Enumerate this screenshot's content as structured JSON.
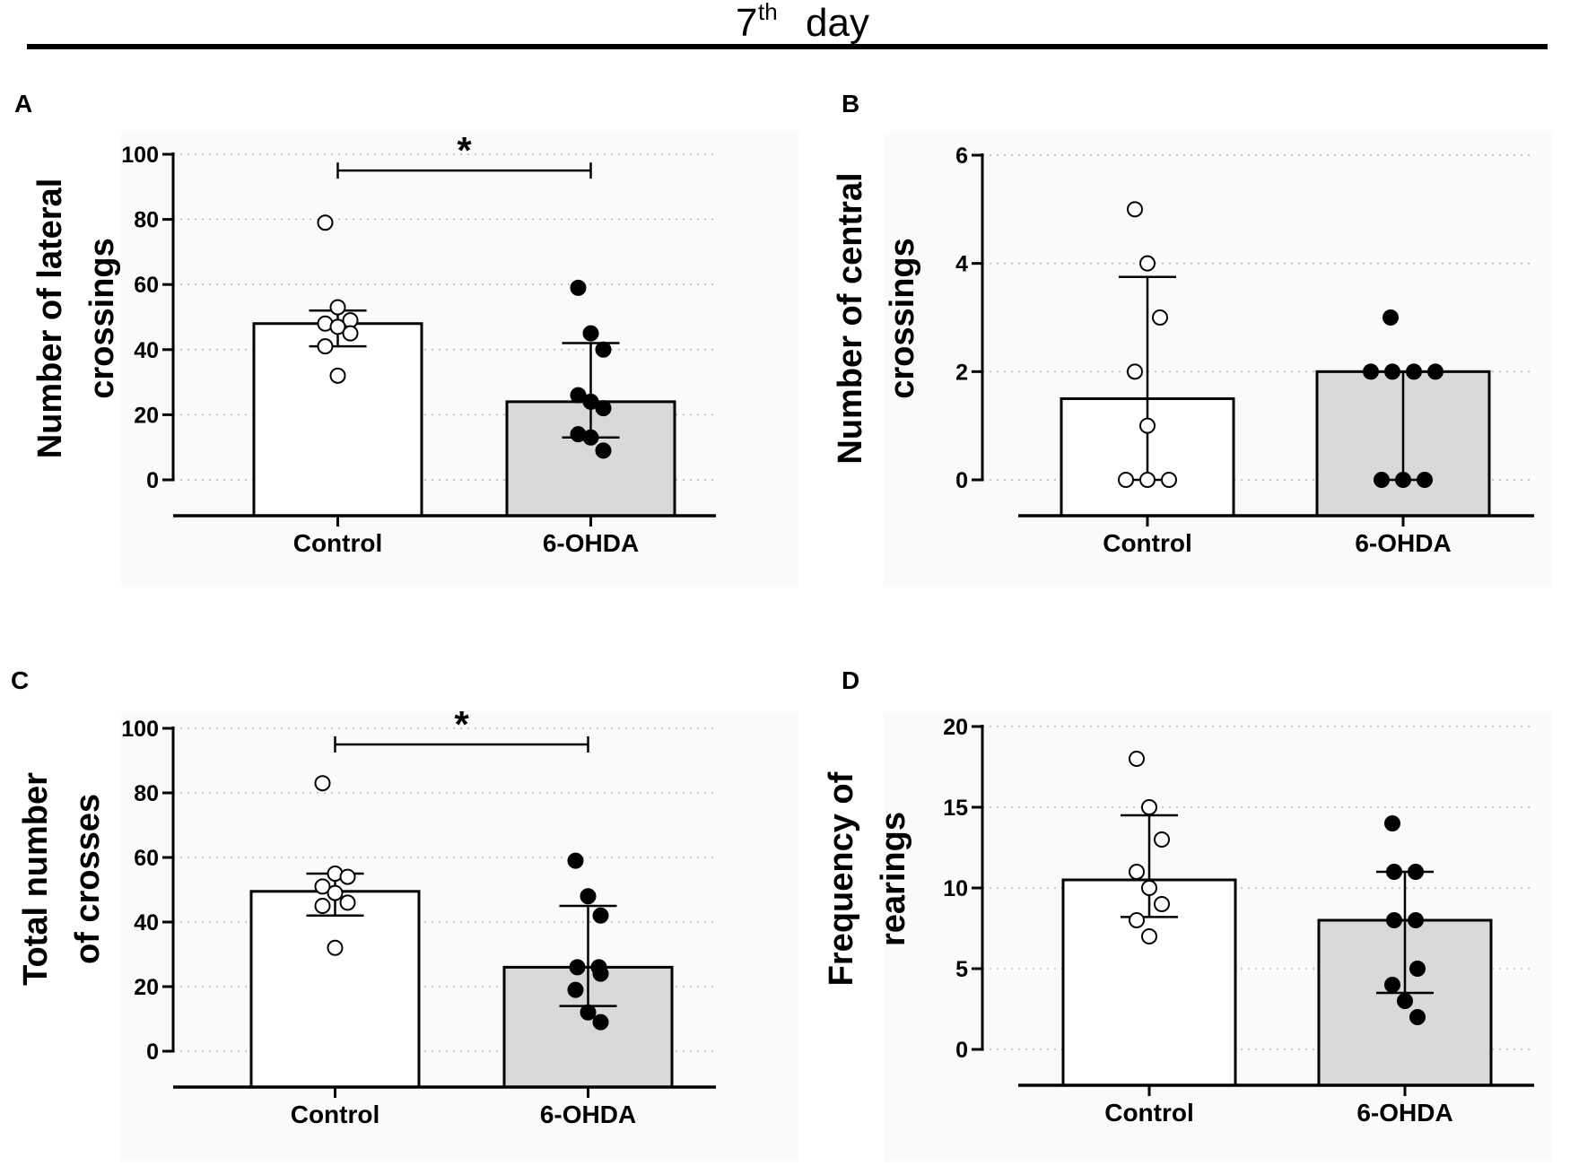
{
  "header": {
    "base": "7",
    "superscript": "th",
    "word": "day"
  },
  "colors": {
    "control_fill": "#ffffff",
    "treated_fill": "#d9d9d9",
    "axis": "#000000",
    "grid": "#b5b5b5",
    "panel_bg": "#fafafa"
  },
  "chart_data": [
    {
      "panel": "A",
      "type": "bar",
      "ylabel": [
        "Number of lateral",
        "crossings"
      ],
      "categories": [
        "Control",
        "6-OHDA"
      ],
      "ylim": [
        0,
        100
      ],
      "yticks": [
        0,
        20,
        40,
        60,
        80,
        100
      ],
      "grid": true,
      "series": [
        {
          "name": "Control",
          "mean": 48,
          "error_low": 41,
          "error_high": 52,
          "points": [
            79,
            53,
            49,
            48,
            47,
            45,
            41,
            32
          ],
          "marker": "open"
        },
        {
          "name": "6-OHDA",
          "mean": 24,
          "error_low": 13,
          "error_high": 42,
          "points": [
            59,
            45,
            40,
            26,
            24,
            22,
            14,
            13,
            9
          ],
          "marker": "filled"
        }
      ],
      "significance": {
        "between": [
          "Control",
          "6-OHDA"
        ],
        "label": "*",
        "y": 95
      }
    },
    {
      "panel": "B",
      "type": "bar",
      "ylabel": [
        "Number of central",
        "crossings"
      ],
      "categories": [
        "Control",
        "6-OHDA"
      ],
      "ylim": [
        0,
        6
      ],
      "yticks": [
        0,
        2,
        4,
        6
      ],
      "grid": true,
      "series": [
        {
          "name": "Control",
          "mean": 1.5,
          "error_low": 0,
          "error_high": 3.75,
          "points": [
            5,
            4,
            3,
            2,
            1,
            0,
            0,
            0
          ],
          "marker": "open"
        },
        {
          "name": "6-OHDA",
          "mean": 2,
          "error_low": 0,
          "error_high": 2,
          "points": [
            3,
            2,
            2,
            2,
            2,
            0,
            0,
            0
          ],
          "marker": "filled"
        }
      ],
      "significance": null
    },
    {
      "panel": "C",
      "type": "bar",
      "ylabel": [
        "Total number",
        "of crosses"
      ],
      "categories": [
        "Control",
        "6-OHDA"
      ],
      "ylim": [
        0,
        100
      ],
      "yticks": [
        0,
        20,
        40,
        60,
        80,
        100
      ],
      "grid": true,
      "series": [
        {
          "name": "Control",
          "mean": 49.5,
          "error_low": 42,
          "error_high": 55,
          "points": [
            83,
            55,
            54,
            51,
            49,
            46,
            45,
            32
          ],
          "marker": "open"
        },
        {
          "name": "6-OHDA",
          "mean": 26,
          "error_low": 14,
          "error_high": 45,
          "points": [
            59,
            48,
            42,
            26,
            26,
            24,
            19,
            12,
            9
          ],
          "marker": "filled"
        }
      ],
      "significance": {
        "between": [
          "Control",
          "6-OHDA"
        ],
        "label": "*",
        "y": 95
      }
    },
    {
      "panel": "D",
      "type": "bar",
      "ylabel": [
        "Frequency of",
        "rearings"
      ],
      "categories": [
        "Control",
        "6-OHDA"
      ],
      "ylim": [
        0,
        20
      ],
      "yticks": [
        0,
        5,
        10,
        15,
        20
      ],
      "grid": true,
      "series": [
        {
          "name": "Control",
          "mean": 10.5,
          "error_low": 8.2,
          "error_high": 14.5,
          "points": [
            18,
            15,
            13,
            11,
            10,
            9,
            8,
            7
          ],
          "marker": "open"
        },
        {
          "name": "6-OHDA",
          "mean": 8,
          "error_low": 3.5,
          "error_high": 11,
          "points": [
            14,
            11,
            11,
            8,
            8,
            5,
            4,
            3,
            2
          ],
          "marker": "filled"
        }
      ],
      "significance": null
    }
  ]
}
